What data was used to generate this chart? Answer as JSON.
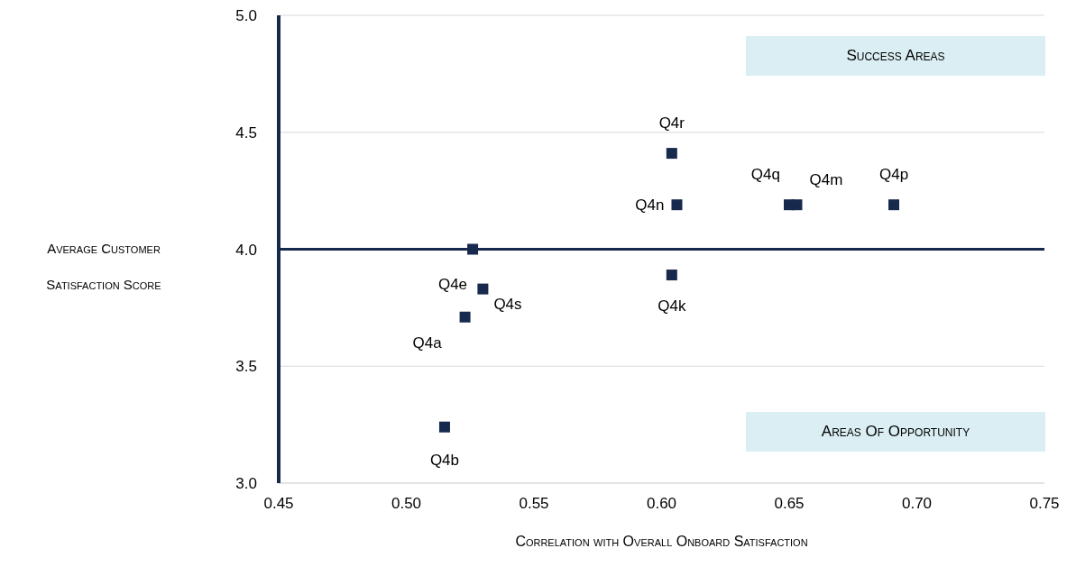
{
  "chart_data": {
    "type": "scatter",
    "xlabel": "Correlation with Overall Onboard Satisfaction",
    "ylabel": "Average Customer Satisfaction Score",
    "annotations": [
      "Success Areas",
      "Areas Of Opportunity"
    ],
    "x": [
      0.604,
      0.606,
      0.65,
      0.653,
      0.691,
      0.526,
      0.53,
      0.604,
      0.523,
      0.515
    ],
    "series": [
      {
        "color": "#17294d",
        "values": [
          4.41,
          4.19,
          4.19,
          4.19,
          4.19,
          4.0,
          3.83,
          3.89,
          3.71,
          3.24
        ],
        "value_labels": [
          "Q4r",
          "Q4n",
          "Q4q",
          "Q4m",
          "Q4p",
          "Q4e",
          "Q4s",
          "Q4k",
          "Q4a",
          "Q4b"
        ]
      }
    ],
    "xlim": [
      0.45,
      0.75
    ],
    "xticks": [
      {
        "value": 0.45,
        "label": "0.45"
      },
      {
        "value": 0.5,
        "label": "0.50"
      },
      {
        "value": 0.55,
        "label": "0.55"
      },
      {
        "value": 0.6,
        "label": "0.60"
      },
      {
        "value": 0.65,
        "label": "0.65"
      },
      {
        "value": 0.7,
        "label": "0.70"
      },
      {
        "value": 0.75,
        "label": "0.75"
      }
    ],
    "ylim": [
      3,
      5
    ],
    "yticks": [
      {
        "value": 3,
        "label": "3.0"
      },
      {
        "value": 3.5,
        "label": "3.5"
      },
      {
        "value": 4,
        "label": "4.0"
      },
      {
        "value": 4.5,
        "label": "4.5"
      },
      {
        "value": 5,
        "label": "5.0"
      }
    ],
    "ref_lines": [
      {
        "axis": "y",
        "value": 4,
        "color": "#17294d"
      }
    ],
    "grid": "y",
    "marker": "square"
  }
}
